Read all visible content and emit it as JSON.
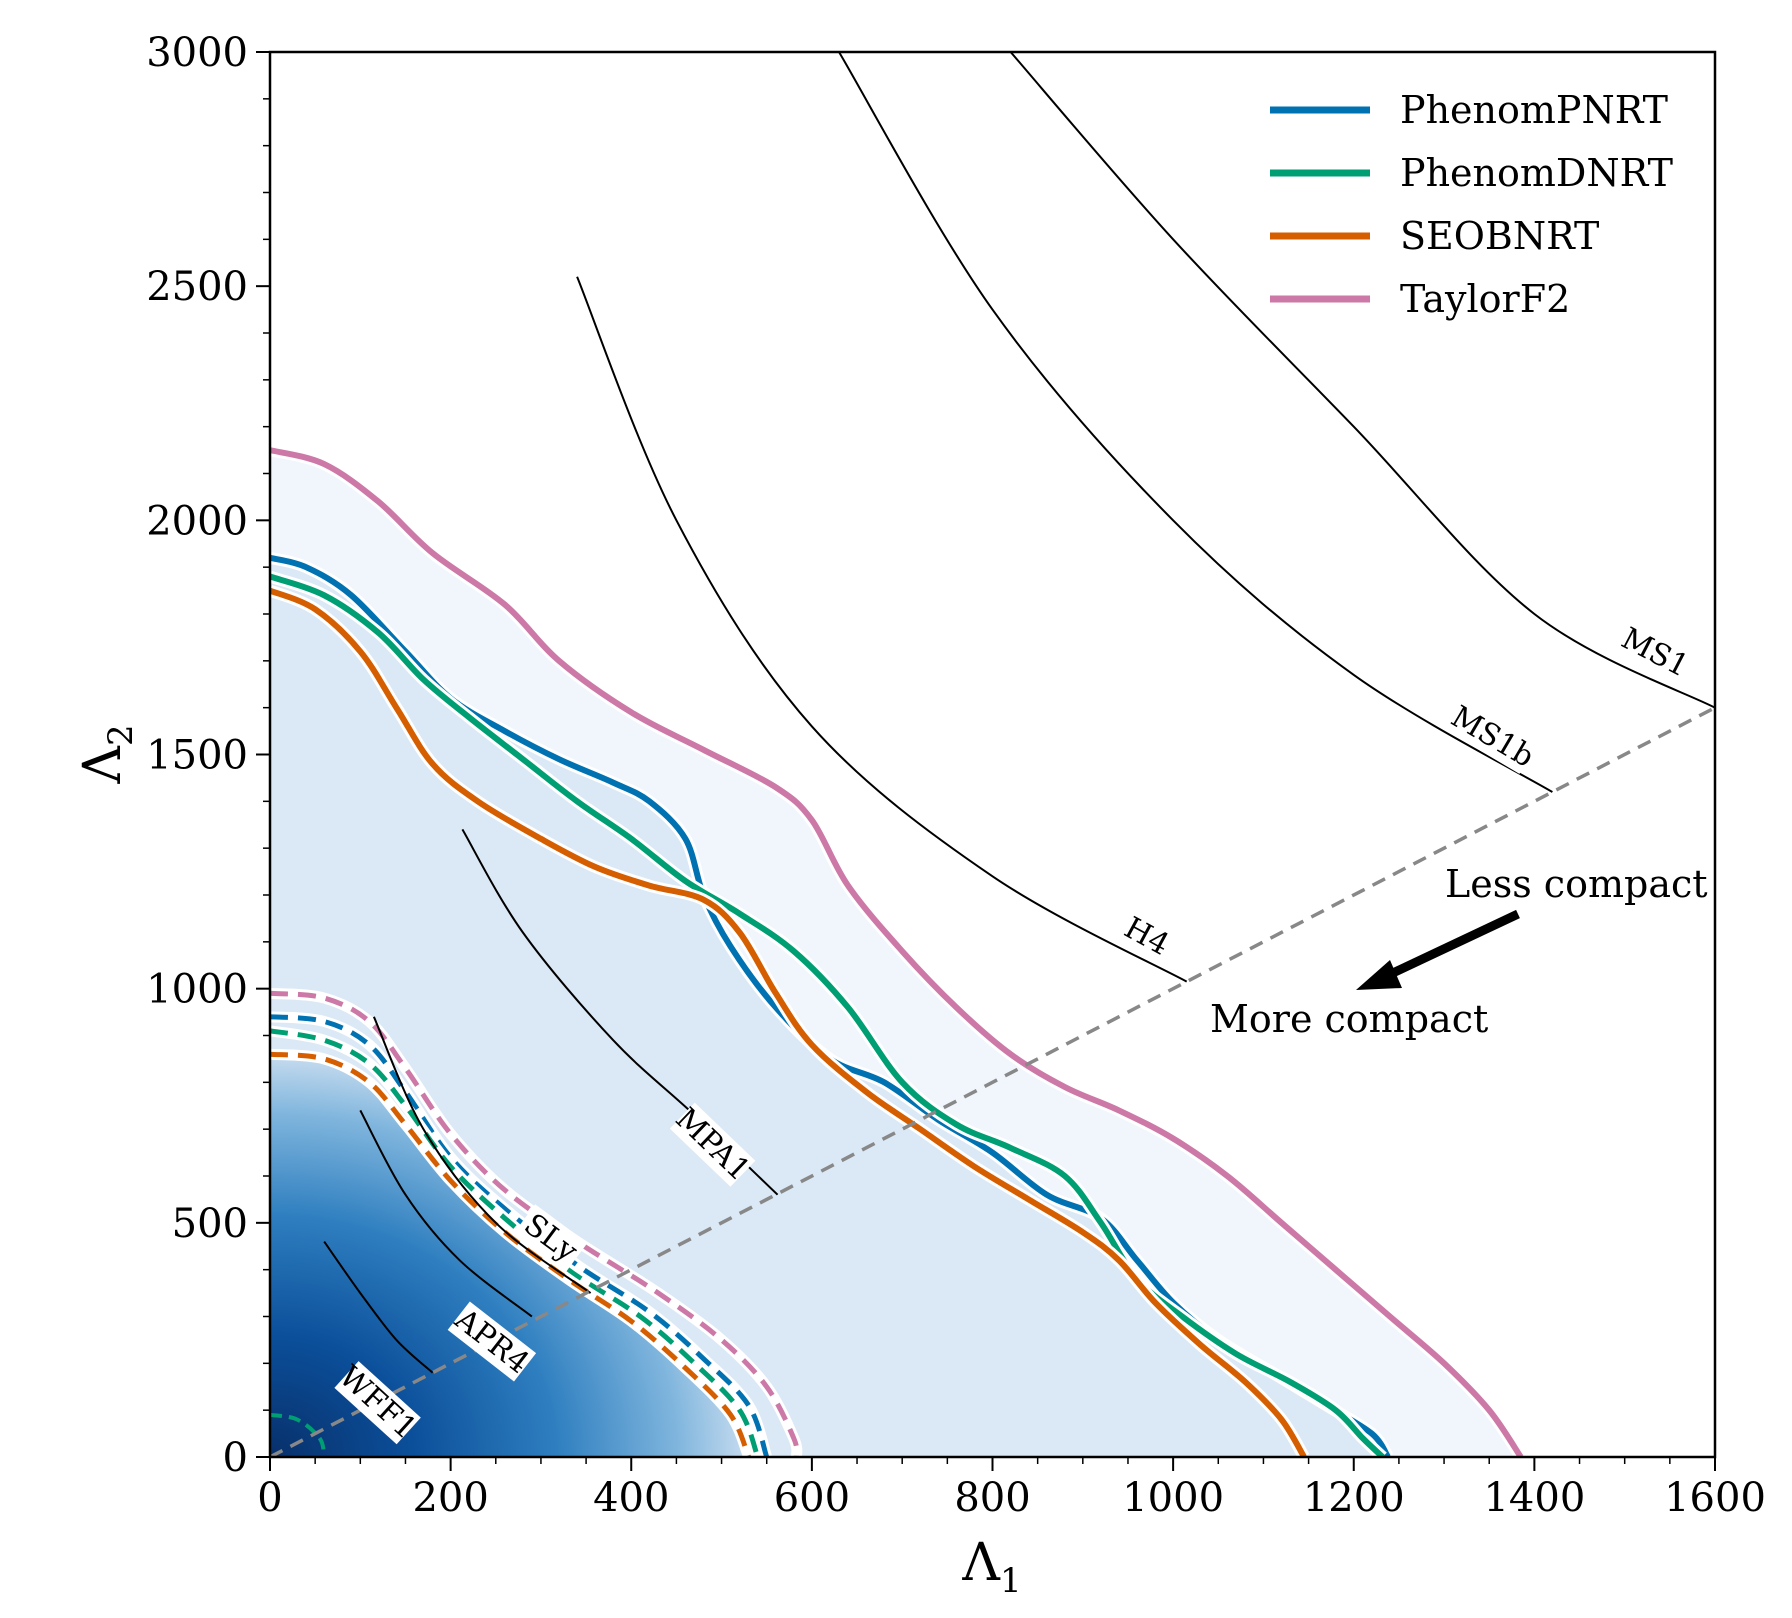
{
  "chart_data": {
    "type": "line",
    "xlabel": "Λ",
    "xlabel_sub": "1",
    "ylabel": "Λ",
    "ylabel_sub": "2",
    "xlim": [
      0,
      1600
    ],
    "ylim": [
      0,
      3000
    ],
    "xticks": [
      "0",
      "200",
      "400",
      "600",
      "800",
      "1000",
      "1200",
      "1400",
      "1600"
    ],
    "yticks": [
      "0",
      "500",
      "1000",
      "1500",
      "2000",
      "2500",
      "3000"
    ],
    "grid": false,
    "legend_position": "top-right",
    "series": [
      {
        "name": "PhenomPNRT",
        "color": "#0072b2",
        "credible_90": [
          [
            0,
            1920
          ],
          [
            40,
            1900
          ],
          [
            90,
            1840
          ],
          [
            150,
            1720
          ],
          [
            200,
            1620
          ],
          [
            260,
            1550
          ],
          [
            320,
            1490
          ],
          [
            380,
            1440
          ],
          [
            420,
            1400
          ],
          [
            460,
            1320
          ],
          [
            480,
            1200
          ],
          [
            510,
            1090
          ],
          [
            560,
            960
          ],
          [
            620,
            850
          ],
          [
            680,
            800
          ],
          [
            740,
            720
          ],
          [
            800,
            650
          ],
          [
            860,
            560
          ],
          [
            920,
            510
          ],
          [
            960,
            420
          ],
          [
            1000,
            330
          ],
          [
            1050,
            250
          ],
          [
            1110,
            180
          ],
          [
            1170,
            110
          ],
          [
            1220,
            50
          ],
          [
            1238,
            0
          ]
        ],
        "credible_50": [
          [
            0,
            940
          ],
          [
            60,
            930
          ],
          [
            110,
            880
          ],
          [
            150,
            780
          ],
          [
            200,
            640
          ],
          [
            260,
            530
          ],
          [
            340,
            410
          ],
          [
            420,
            310
          ],
          [
            480,
            210
          ],
          [
            530,
            110
          ],
          [
            550,
            0
          ]
        ]
      },
      {
        "name": "PhenomDNRT",
        "color": "#009e73",
        "credible_90": [
          [
            0,
            1880
          ],
          [
            60,
            1840
          ],
          [
            120,
            1760
          ],
          [
            170,
            1660
          ],
          [
            220,
            1580
          ],
          [
            280,
            1490
          ],
          [
            340,
            1400
          ],
          [
            400,
            1320
          ],
          [
            460,
            1230
          ],
          [
            520,
            1160
          ],
          [
            580,
            1080
          ],
          [
            640,
            960
          ],
          [
            700,
            800
          ],
          [
            760,
            710
          ],
          [
            820,
            660
          ],
          [
            880,
            600
          ],
          [
            920,
            500
          ],
          [
            960,
            380
          ],
          [
            1010,
            300
          ],
          [
            1070,
            220
          ],
          [
            1130,
            160
          ],
          [
            1180,
            100
          ],
          [
            1210,
            40
          ],
          [
            1232,
            0
          ]
        ],
        "credible_50": [
          [
            0,
            910
          ],
          [
            60,
            890
          ],
          [
            110,
            840
          ],
          [
            150,
            750
          ],
          [
            200,
            620
          ],
          [
            260,
            510
          ],
          [
            330,
            400
          ],
          [
            410,
            300
          ],
          [
            470,
            200
          ],
          [
            520,
            100
          ],
          [
            540,
            0
          ]
        ],
        "credible_small": [
          [
            0,
            90
          ],
          [
            30,
            80
          ],
          [
            55,
            40
          ],
          [
            60,
            0
          ]
        ]
      },
      {
        "name": "SEOBNRT",
        "color": "#d55e00",
        "credible_90": [
          [
            0,
            1850
          ],
          [
            50,
            1810
          ],
          [
            100,
            1720
          ],
          [
            140,
            1600
          ],
          [
            180,
            1480
          ],
          [
            230,
            1400
          ],
          [
            300,
            1320
          ],
          [
            360,
            1260
          ],
          [
            420,
            1220
          ],
          [
            480,
            1190
          ],
          [
            520,
            1120
          ],
          [
            560,
            990
          ],
          [
            600,
            880
          ],
          [
            660,
            780
          ],
          [
            720,
            700
          ],
          [
            780,
            620
          ],
          [
            840,
            550
          ],
          [
            900,
            480
          ],
          [
            940,
            420
          ],
          [
            980,
            330
          ],
          [
            1030,
            240
          ],
          [
            1080,
            160
          ],
          [
            1120,
            80
          ],
          [
            1145,
            0
          ]
        ],
        "credible_50": [
          [
            0,
            860
          ],
          [
            60,
            850
          ],
          [
            110,
            800
          ],
          [
            150,
            710
          ],
          [
            200,
            590
          ],
          [
            260,
            480
          ],
          [
            330,
            380
          ],
          [
            400,
            290
          ],
          [
            460,
            190
          ],
          [
            510,
            90
          ],
          [
            530,
            0
          ]
        ]
      },
      {
        "name": "TaylorF2",
        "color": "#cc79a7",
        "credible_90": [
          [
            0,
            2150
          ],
          [
            60,
            2120
          ],
          [
            120,
            2040
          ],
          [
            180,
            1930
          ],
          [
            260,
            1820
          ],
          [
            320,
            1700
          ],
          [
            400,
            1590
          ],
          [
            480,
            1510
          ],
          [
            560,
            1430
          ],
          [
            600,
            1360
          ],
          [
            640,
            1220
          ],
          [
            700,
            1080
          ],
          [
            760,
            960
          ],
          [
            820,
            860
          ],
          [
            880,
            790
          ],
          [
            940,
            740
          ],
          [
            1000,
            680
          ],
          [
            1060,
            600
          ],
          [
            1120,
            500
          ],
          [
            1180,
            400
          ],
          [
            1240,
            300
          ],
          [
            1300,
            200
          ],
          [
            1350,
            100
          ],
          [
            1385,
            0
          ]
        ],
        "credible_50": [
          [
            0,
            990
          ],
          [
            60,
            980
          ],
          [
            110,
            930
          ],
          [
            150,
            830
          ],
          [
            200,
            690
          ],
          [
            260,
            570
          ],
          [
            340,
            460
          ],
          [
            430,
            350
          ],
          [
            500,
            250
          ],
          [
            550,
            150
          ],
          [
            580,
            40
          ],
          [
            583,
            0
          ]
        ]
      }
    ],
    "eos_curves": [
      {
        "name": "WFF1",
        "points": [
          [
            60,
            460
          ],
          [
            100,
            350
          ],
          [
            140,
            250
          ],
          [
            180,
            180
          ]
        ]
      },
      {
        "name": "APR4",
        "points": [
          [
            100,
            740
          ],
          [
            150,
            560
          ],
          [
            210,
            420
          ],
          [
            290,
            300
          ]
        ]
      },
      {
        "name": "SLy",
        "points": [
          [
            115,
            940
          ],
          [
            170,
            700
          ],
          [
            250,
            500
          ],
          [
            355,
            350
          ]
        ]
      },
      {
        "name": "MPA1",
        "points": [
          [
            213,
            1340
          ],
          [
            280,
            1120
          ],
          [
            380,
            890
          ],
          [
            470,
            730
          ],
          [
            562,
            560
          ]
        ]
      },
      {
        "name": "H4",
        "points": [
          [
            340,
            2520
          ],
          [
            450,
            2000
          ],
          [
            600,
            1560
          ],
          [
            800,
            1240
          ],
          [
            1015,
            1015
          ]
        ]
      },
      {
        "name": "MS1b",
        "points": [
          [
            630,
            3000
          ],
          [
            800,
            2450
          ],
          [
            1000,
            2000
          ],
          [
            1200,
            1670
          ],
          [
            1420,
            1420
          ]
        ]
      },
      {
        "name": "MS1",
        "points": [
          [
            820,
            3000
          ],
          [
            1000,
            2600
          ],
          [
            1200,
            2200
          ],
          [
            1400,
            1800
          ],
          [
            1600,
            1600
          ]
        ]
      }
    ],
    "diagonal": {
      "from": [
        0,
        0
      ],
      "to": [
        1600,
        1600
      ],
      "style": "dashed",
      "color": "#888888"
    },
    "annotations": {
      "less_compact": "Less compact",
      "more_compact": "More compact"
    }
  }
}
